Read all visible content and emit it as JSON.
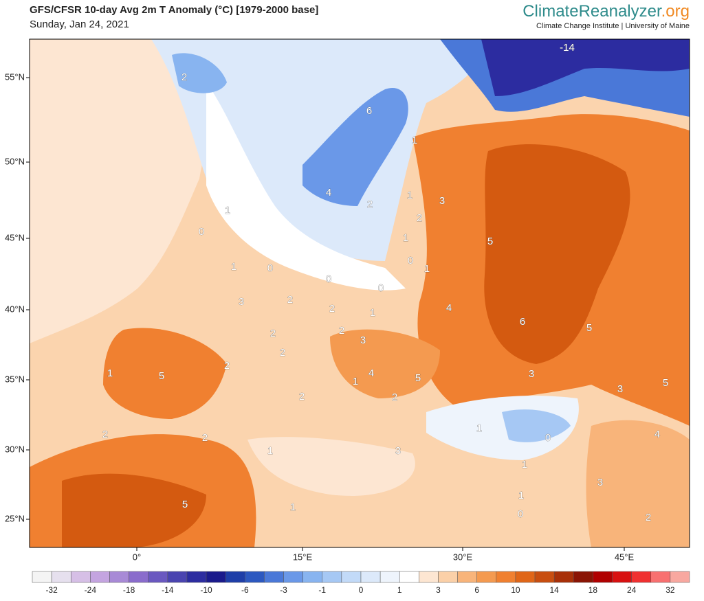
{
  "header": {
    "title": "GFS/CFSR 10-day Avg 2m T Anomaly (°C) [1979-2000 base]",
    "date": "Sunday, Jan 24, 2021",
    "brand_main": "ClimateReanalyzer",
    "brand_suffix": ".org",
    "affiliation": "Climate Change Institute | University of Maine"
  },
  "map": {
    "lat_labels": [
      "55°N",
      "50°N",
      "45°N",
      "40°N",
      "35°N",
      "30°N",
      "25°N"
    ],
    "lon_labels": [
      "0°",
      "15°E",
      "30°E",
      "45°E"
    ],
    "contour_labels": [
      -14,
      2,
      6,
      1,
      4,
      2,
      1,
      3,
      1,
      0,
      2,
      1,
      5,
      0,
      1,
      1,
      0,
      0,
      0,
      3,
      2,
      2,
      1,
      4,
      6,
      5,
      2,
      2,
      3,
      2,
      2,
      1,
      5,
      4,
      5,
      1,
      3,
      3,
      5,
      2,
      2,
      2,
      2,
      1,
      0,
      4,
      3,
      1,
      1,
      3,
      1,
      5,
      1,
      0,
      2
    ]
  },
  "colorbar": {
    "labels": [
      -32,
      -24,
      -18,
      -14,
      -10,
      -6,
      -3,
      -1,
      0,
      1,
      3,
      6,
      10,
      14,
      18,
      24,
      32
    ],
    "colors": [
      "#f4f4f4",
      "#e6e0ee",
      "#d6bfe6",
      "#c4a4e0",
      "#a88ad6",
      "#8a6ccc",
      "#6a58c0",
      "#4a44b0",
      "#2c2ca0",
      "#1a1a8c",
      "#1e3ea8",
      "#2c58c0",
      "#4a78d8",
      "#6a98e8",
      "#88b4f0",
      "#a6c8f4",
      "#c2daf8",
      "#dce9fa",
      "#eef4fc",
      "#ffffff",
      "#fde6d2",
      "#fbd0a8",
      "#f8b47a",
      "#f49a50",
      "#f08030",
      "#e06618",
      "#c84e10",
      "#a83008",
      "#8a1404",
      "#b00000",
      "#d81010",
      "#f03030",
      "#f87070",
      "#f8a8a0"
    ]
  }
}
